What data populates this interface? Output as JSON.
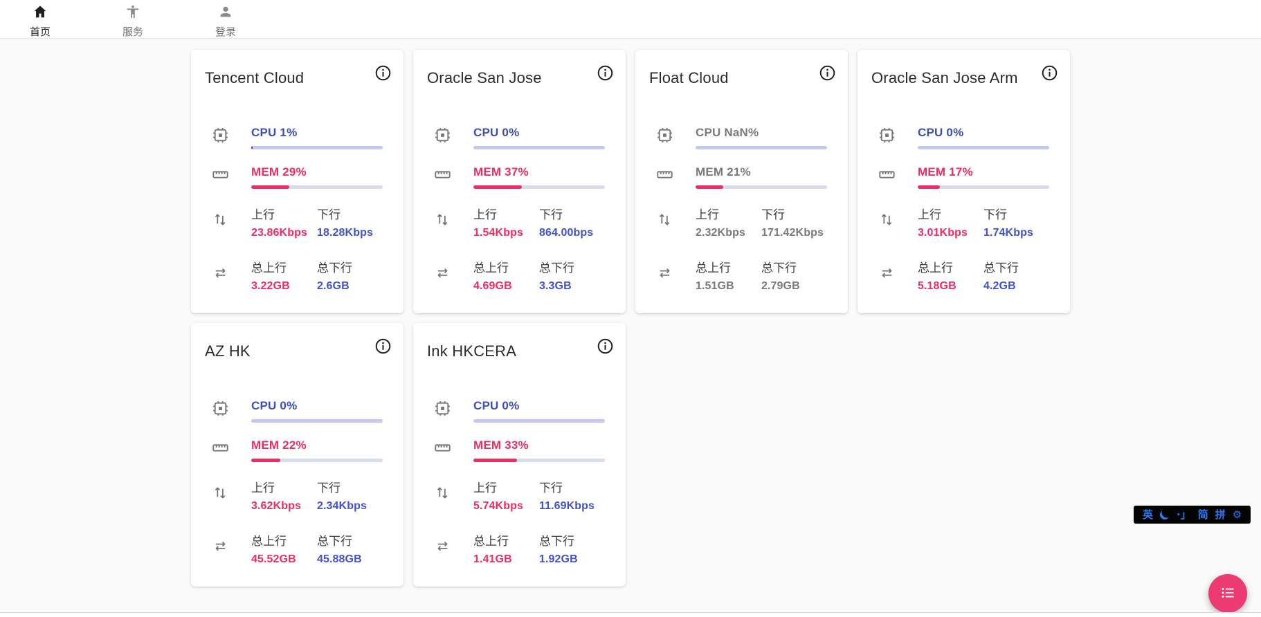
{
  "nav": {
    "home": {
      "label": "首页"
    },
    "services": {
      "label": "服务"
    },
    "login": {
      "label": "登录"
    }
  },
  "labels": {
    "upload": "上行",
    "download": "下行",
    "total_upload": "总上行",
    "total_download": "总下行"
  },
  "colors": {
    "cpu_accent": "#3d4eb8",
    "mem_accent": "#ec2d64",
    "download_accent": "#4252cb",
    "offline_text": "#7a7a7a",
    "fab": "#ec3b72",
    "ime_blue": "#2b7bf3"
  },
  "servers": [
    {
      "name": "Tencent Cloud",
      "cpu": "CPU 1%",
      "cpu_pct": 1,
      "mem": "MEM 29%",
      "mem_pct": 29,
      "upload": "23.86Kbps",
      "download": "18.28Kbps",
      "total_upload": "3.22GB",
      "total_download": "2.6GB",
      "offline": false
    },
    {
      "name": "Oracle San Jose",
      "cpu": "CPU 0%",
      "cpu_pct": 0,
      "mem": "MEM 37%",
      "mem_pct": 37,
      "upload": "1.54Kbps",
      "download": "864.00bps",
      "total_upload": "4.69GB",
      "total_download": "3.3GB",
      "offline": false
    },
    {
      "name": "Float Cloud",
      "cpu": "CPU NaN%",
      "cpu_pct": 0,
      "mem": "MEM 21%",
      "mem_pct": 21,
      "upload": "2.32Kbps",
      "download": "171.42Kbps",
      "total_upload": "1.51GB",
      "total_download": "2.79GB",
      "offline": true
    },
    {
      "name": "Oracle San Jose Arm",
      "cpu": "CPU 0%",
      "cpu_pct": 0,
      "mem": "MEM 17%",
      "mem_pct": 17,
      "upload": "3.01Kbps",
      "download": "1.74Kbps",
      "total_upload": "5.18GB",
      "total_download": "4.2GB",
      "offline": false
    },
    {
      "name": "AZ HK",
      "cpu": "CPU 0%",
      "cpu_pct": 0,
      "mem": "MEM 22%",
      "mem_pct": 22,
      "upload": "3.62Kbps",
      "download": "2.34Kbps",
      "total_upload": "45.52GB",
      "total_download": "45.88GB",
      "offline": false
    },
    {
      "name": "Ink HKCERA",
      "cpu": "CPU 0%",
      "cpu_pct": 0,
      "mem": "MEM 33%",
      "mem_pct": 33,
      "upload": "5.74Kbps",
      "download": "11.69Kbps",
      "total_upload": "1.41GB",
      "total_download": "1.92GB",
      "offline": false
    }
  ],
  "ime_bar": {
    "items": [
      {
        "text": "英"
      },
      {
        "icon": "moon-icon"
      },
      {
        "text": "·」"
      },
      {
        "text": "简"
      },
      {
        "text": "拼"
      },
      {
        "icon": "gear-icon",
        "text": "⚙"
      }
    ]
  }
}
